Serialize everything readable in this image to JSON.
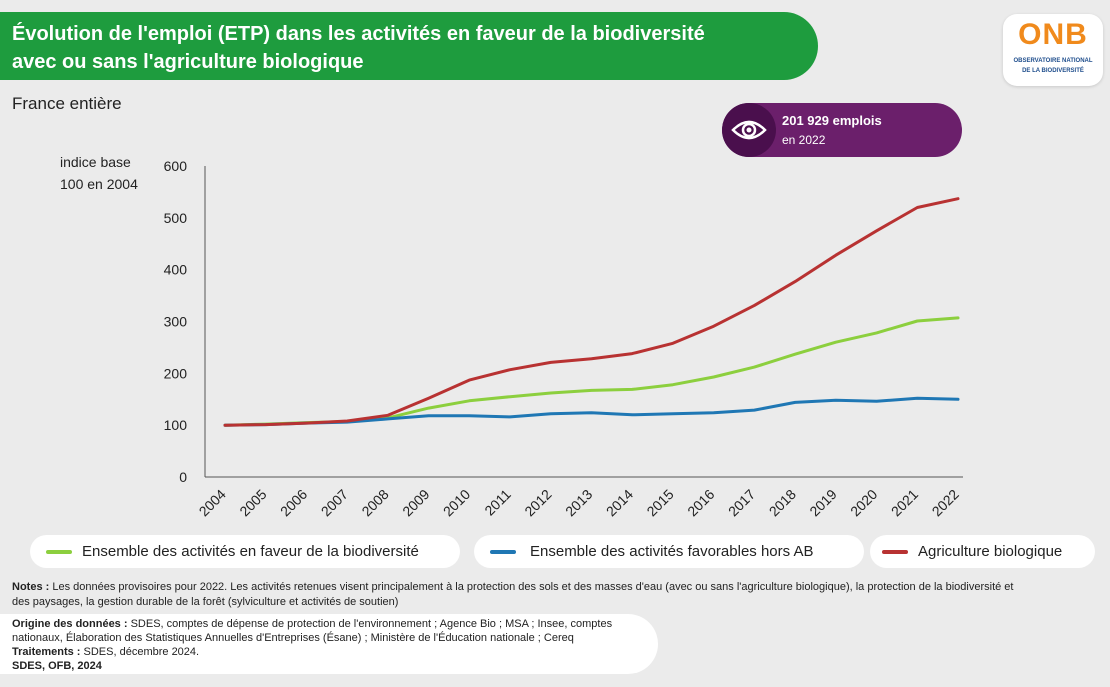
{
  "header": {
    "title_line1": "Évolution de l'emploi (ETP) dans les activités en faveur de la biodiversité",
    "title_line2": "avec ou sans l'agriculture biologique",
    "subtitle": "France entière"
  },
  "logo": {
    "word": "ONB",
    "line1": "OBSERVATOIRE NATIONAL",
    "line2": "DE LA BIODIVERSITÉ"
  },
  "callout": {
    "icon": "eye-icon",
    "value": "201 929 emplois",
    "sub": "en 2022"
  },
  "chart_data": {
    "type": "line",
    "ylabel_line1": "indice base",
    "ylabel_line2": "100 en 2004",
    "ylim": [
      0,
      600
    ],
    "yticks": [
      0,
      100,
      200,
      300,
      400,
      500,
      600
    ],
    "x": [
      "2004",
      "2005",
      "2006",
      "2007",
      "2008",
      "2009",
      "2010",
      "2011",
      "2012",
      "2013",
      "2014",
      "2015",
      "2016",
      "2017",
      "2018",
      "2019",
      "2020",
      "2021",
      "2022"
    ],
    "series": [
      {
        "name": "Ensemble des activités en faveur de la biodiversité",
        "color": "#8ccf3e",
        "values": [
          100,
          102,
          105,
          107,
          114,
          133,
          147,
          155,
          162,
          167,
          169,
          178,
          193,
          212,
          237,
          260,
          278,
          301,
          307
        ]
      },
      {
        "name": "Ensemble des activités favorables hors AB",
        "color": "#1f77b4",
        "values": [
          100,
          101,
          104,
          106,
          112,
          118,
          118,
          116,
          122,
          124,
          120,
          122,
          124,
          129,
          144,
          148,
          146,
          152,
          150
        ]
      },
      {
        "name": "Agriculture biologique",
        "color": "#b83232",
        "values": [
          100,
          101,
          104,
          108,
          119,
          152,
          187,
          207,
          221,
          228,
          238,
          258,
          291,
          331,
          377,
          428,
          475,
          520,
          537
        ]
      }
    ],
    "grid": false,
    "legend_placement": "bottom"
  },
  "notes": {
    "label": "Notes :",
    "text_line1": " Les données provisoires pour 2022. Les activités retenues visent principalement à la protection des sols et des masses d'eau (avec ou sans l'agriculture biologique), la protection de la biodiversité et",
    "text_line2": "des paysages, la gestion durable de la forêt (sylviculture et activités de soutien)"
  },
  "source": {
    "origin_label": "Origine des données :",
    "origin_line1": " SDES, comptes de dépense de protection de l'environnement ; Agence Bio ; MSA ; Insee, comptes",
    "origin_line2": "nationaux, Élaboration des Statistiques Annuelles d'Entreprises (Ésane) ; Ministère de l'Éducation nationale ; Cereq",
    "treat_label": "Traitements :",
    "treat_text": " SDES, décembre 2024.",
    "credit": "SDES, OFB, 2024"
  }
}
